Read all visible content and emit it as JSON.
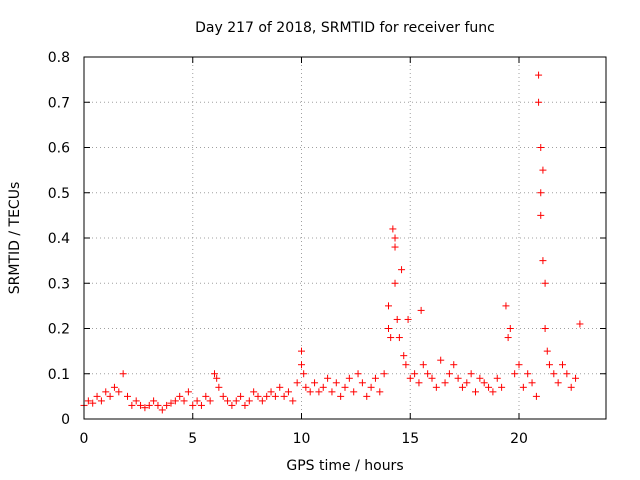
{
  "chart_data": {
    "type": "scatter",
    "title": "Day 217 of 2018, SRMTID for receiver func",
    "xlabel": "GPS time / hours",
    "ylabel": "SRMTID / TECUs",
    "xlim": [
      0,
      24
    ],
    "ylim": [
      0,
      0.8
    ],
    "xticks": [
      0,
      5,
      10,
      15,
      20
    ],
    "yticks": [
      0,
      0.1,
      0.2,
      0.3,
      0.4,
      0.5,
      0.6,
      0.7,
      0.8
    ],
    "xtick_labels": [
      "0",
      "5",
      "10",
      "15",
      "20"
    ],
    "ytick_labels": [
      "0",
      "0.1",
      "0.2",
      "0.3",
      "0.4",
      "0.5",
      "0.6",
      "0.7",
      "0.8"
    ],
    "grid": true,
    "marker": "+",
    "marker_color": "#ff0000",
    "series": [
      {
        "name": "SRMTID",
        "x": [
          0.0,
          0.2,
          0.4,
          0.6,
          0.8,
          1.0,
          1.2,
          1.4,
          1.6,
          1.8,
          2.0,
          2.2,
          2.4,
          2.6,
          2.8,
          3.0,
          3.2,
          3.4,
          3.6,
          3.8,
          4.0,
          4.2,
          4.4,
          4.6,
          4.8,
          5.0,
          5.2,
          5.4,
          5.6,
          5.8,
          6.0,
          6.1,
          6.2,
          6.4,
          6.6,
          6.8,
          7.0,
          7.2,
          7.4,
          7.6,
          7.8,
          8.0,
          8.2,
          8.4,
          8.6,
          8.8,
          9.0,
          9.2,
          9.4,
          9.6,
          9.8,
          10.0,
          10.0,
          10.1,
          10.2,
          10.4,
          10.6,
          10.8,
          11.0,
          11.2,
          11.4,
          11.6,
          11.8,
          12.0,
          12.2,
          12.4,
          12.6,
          12.8,
          13.0,
          13.2,
          13.4,
          13.6,
          13.8,
          14.0,
          14.0,
          14.1,
          14.2,
          14.3,
          14.3,
          14.3,
          14.4,
          14.5,
          14.6,
          14.7,
          14.8,
          14.9,
          15.0,
          15.2,
          15.4,
          15.5,
          15.6,
          15.8,
          16.0,
          16.2,
          16.4,
          16.6,
          16.8,
          17.0,
          17.2,
          17.4,
          17.6,
          17.8,
          18.0,
          18.2,
          18.4,
          18.6,
          18.8,
          19.0,
          19.2,
          19.4,
          19.5,
          19.6,
          19.8,
          20.0,
          20.2,
          20.4,
          20.6,
          20.8,
          20.9,
          20.9,
          21.0,
          21.0,
          21.0,
          21.1,
          21.1,
          21.2,
          21.2,
          21.3,
          21.4,
          21.6,
          21.8,
          22.0,
          22.2,
          22.4,
          22.6,
          22.8
        ],
        "y": [
          0.03,
          0.04,
          0.035,
          0.05,
          0.04,
          0.06,
          0.05,
          0.07,
          0.06,
          0.1,
          0.05,
          0.03,
          0.04,
          0.03,
          0.025,
          0.03,
          0.04,
          0.03,
          0.02,
          0.03,
          0.035,
          0.04,
          0.05,
          0.04,
          0.06,
          0.03,
          0.04,
          0.03,
          0.05,
          0.04,
          0.1,
          0.09,
          0.07,
          0.05,
          0.04,
          0.03,
          0.04,
          0.05,
          0.03,
          0.04,
          0.06,
          0.05,
          0.04,
          0.05,
          0.06,
          0.05,
          0.07,
          0.05,
          0.06,
          0.04,
          0.08,
          0.15,
          0.12,
          0.1,
          0.07,
          0.06,
          0.08,
          0.06,
          0.07,
          0.09,
          0.06,
          0.08,
          0.05,
          0.07,
          0.09,
          0.06,
          0.1,
          0.08,
          0.05,
          0.07,
          0.09,
          0.06,
          0.1,
          0.25,
          0.2,
          0.18,
          0.42,
          0.4,
          0.38,
          0.3,
          0.22,
          0.18,
          0.33,
          0.14,
          0.12,
          0.22,
          0.09,
          0.1,
          0.08,
          0.24,
          0.12,
          0.1,
          0.09,
          0.07,
          0.13,
          0.08,
          0.1,
          0.12,
          0.09,
          0.07,
          0.08,
          0.1,
          0.06,
          0.09,
          0.08,
          0.07,
          0.06,
          0.09,
          0.07,
          0.25,
          0.18,
          0.2,
          0.1,
          0.12,
          0.07,
          0.1,
          0.08,
          0.05,
          0.76,
          0.7,
          0.6,
          0.5,
          0.45,
          0.55,
          0.35,
          0.3,
          0.2,
          0.15,
          0.12,
          0.1,
          0.08,
          0.12,
          0.1,
          0.07,
          0.09,
          0.21
        ]
      }
    ]
  }
}
